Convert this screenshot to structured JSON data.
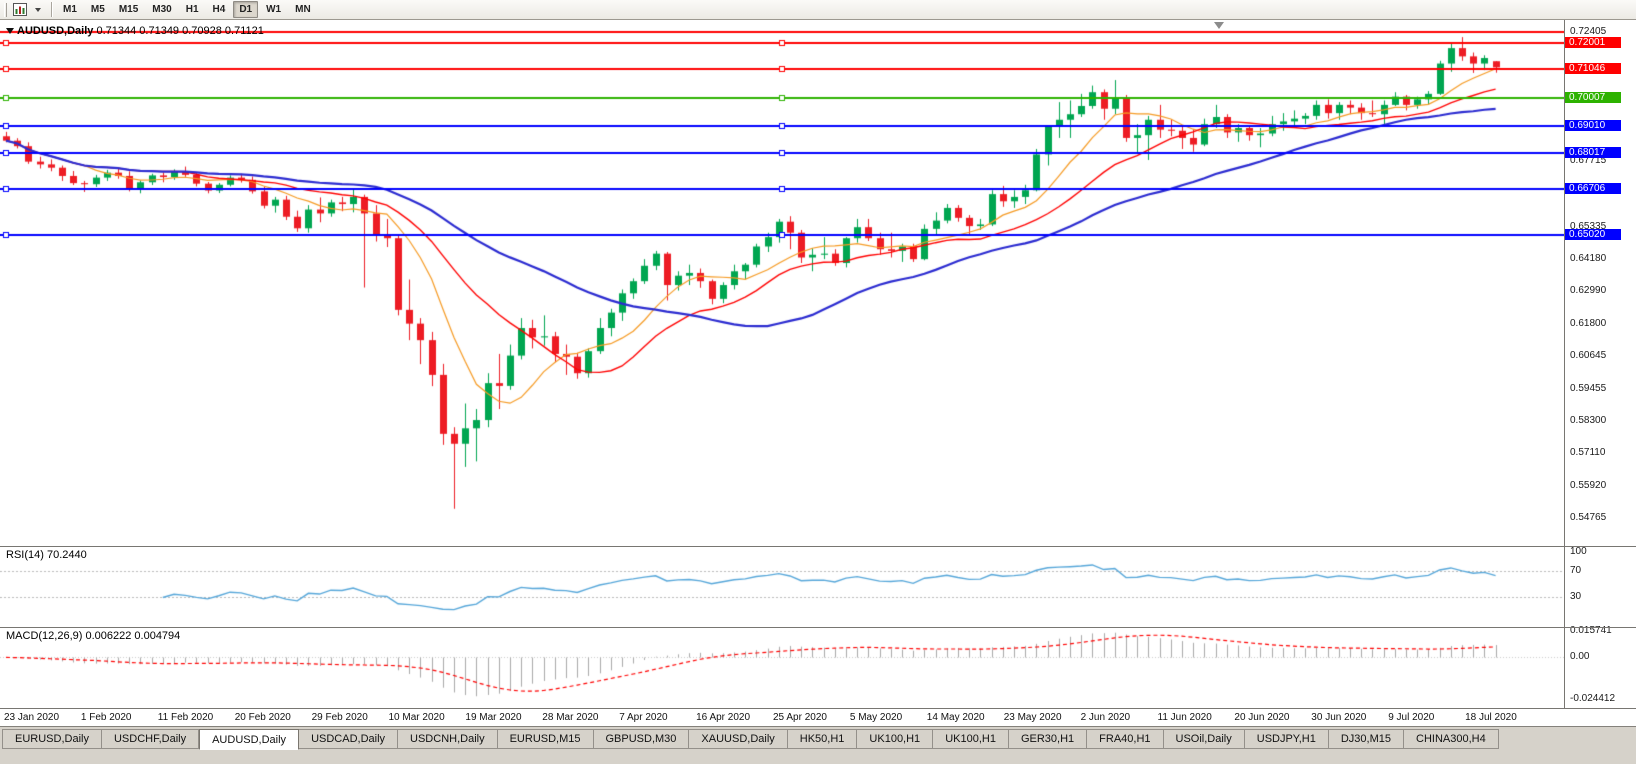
{
  "toolbar": {
    "icons": [
      {
        "name": "chart-window-icon"
      },
      {
        "name": "caret-down-icon"
      }
    ],
    "timeframes": [
      {
        "label": "M1",
        "active": false
      },
      {
        "label": "M5",
        "active": false
      },
      {
        "label": "M15",
        "active": false
      },
      {
        "label": "M30",
        "active": false
      },
      {
        "label": "H1",
        "active": false
      },
      {
        "label": "H4",
        "active": false
      },
      {
        "label": "D1",
        "active": true
      },
      {
        "label": "W1",
        "active": false
      },
      {
        "label": "MN",
        "active": false
      }
    ]
  },
  "chart": {
    "symbol": "AUDUSD,Daily",
    "ohlc_text": "0.71344 0.71349 0.70928 0.71121"
  },
  "rsi_panel": {
    "label": "RSI(14) 70.2440",
    "period": 14,
    "current_value": 70.244,
    "color": "#55a6d9",
    "level_lines": [
      70,
      30
    ],
    "ticks": [
      {
        "label": "100",
        "value": 100
      },
      {
        "label": "70",
        "value": 70
      },
      {
        "label": "30",
        "value": 30
      }
    ]
  },
  "macd_panel": {
    "label": "MACD(12,26,9) 0.006222 0.004794",
    "params": [
      12,
      26,
      9
    ],
    "macd_value": 0.006222,
    "signal_value": 0.004794,
    "histogram_color": "#a8a8a8",
    "signal_color": "#ff0000",
    "ticks": [
      {
        "label": "0.015741",
        "value": 0.015741
      },
      {
        "label": "0.00",
        "value": 0
      },
      {
        "label": "-0.024412",
        "value": -0.024412
      }
    ]
  },
  "price_axis": {
    "plain_ticks": [
      {
        "label": "0.72405",
        "value": 0.72405
      },
      {
        "label": "0.67715",
        "value": 0.67715
      },
      {
        "label": "0.65335",
        "value": 0.65335
      },
      {
        "label": "0.64180",
        "value": 0.6418
      },
      {
        "label": "0.62990",
        "value": 0.6299
      },
      {
        "label": "0.61800",
        "value": 0.618
      },
      {
        "label": "0.60645",
        "value": 0.60645
      },
      {
        "label": "0.59455",
        "value": 0.59455
      },
      {
        "label": "0.58300",
        "value": 0.583
      },
      {
        "label": "0.57110",
        "value": 0.5711
      },
      {
        "label": "0.55920",
        "value": 0.5592
      },
      {
        "label": "0.54765",
        "value": 0.54765
      }
    ]
  },
  "date_axis": {
    "labels": [
      "23 Jan 2020",
      "1 Feb 2020",
      "11 Feb 2020",
      "20 Feb 2020",
      "29 Feb 2020",
      "10 Mar 2020",
      "19 Mar 2020",
      "28 Mar 2020",
      "7 Apr 2020",
      "16 Apr 2020",
      "25 Apr 2020",
      "5 May 2020",
      "14 May 2020",
      "23 May 2020",
      "2 Jun 2020",
      "11 Jun 2020",
      "20 Jun 2020",
      "30 Jun 2020",
      "9 Jul 2020",
      "18 Jul 2020"
    ]
  },
  "tabs": [
    {
      "label": "EURUSD,Daily",
      "active": false
    },
    {
      "label": "USDCHF,Daily",
      "active": false
    },
    {
      "label": "AUDUSD,Daily",
      "active": true
    },
    {
      "label": "USDCAD,Daily",
      "active": false
    },
    {
      "label": "USDCNH,Daily",
      "active": false
    },
    {
      "label": "EURUSD,M15",
      "active": false
    },
    {
      "label": "GBPUSD,M30",
      "active": false
    },
    {
      "label": "XAUUSD,Daily",
      "active": false
    },
    {
      "label": "HK50,H1",
      "active": false
    },
    {
      "label": "UK100,H1",
      "active": false
    },
    {
      "label": "UK100,H1",
      "active": false
    },
    {
      "label": "GER30,H1",
      "active": false
    },
    {
      "label": "FRA40,H1",
      "active": false
    },
    {
      "label": "USOil,Daily",
      "active": false
    },
    {
      "label": "USDJPY,H1",
      "active": false
    },
    {
      "label": "DJ30,M15",
      "active": false
    },
    {
      "label": "CHINA300,H4",
      "active": false
    }
  ],
  "chart_data": {
    "type": "candlestick",
    "symbol": "AUDUSD",
    "timeframe": "Daily",
    "current_bar": {
      "open": 0.71344,
      "high": 0.71349,
      "low": 0.70928,
      "close": 0.71121
    },
    "price_axis": {
      "max": 0.72405,
      "min": 0.54765
    },
    "bull_color": "#00a651",
    "bear_color": "#ed1c24",
    "x_tick_labels": [
      "23 Jan 2020",
      "1 Feb 2020",
      "11 Feb 2020",
      "20 Feb 2020",
      "29 Feb 2020",
      "10 Mar 2020",
      "19 Mar 2020",
      "28 Mar 2020",
      "7 Apr 2020",
      "16 Apr 2020",
      "25 Apr 2020",
      "5 May 2020",
      "14 May 2020",
      "23 May 2020",
      "2 Jun 2020",
      "11 Jun 2020",
      "20 Jun 2020",
      "30 Jun 2020",
      "9 Jul 2020",
      "18 Jul 2020"
    ],
    "moving_averages": [
      {
        "period": 8,
        "color": "#f59a23",
        "width": 1.2
      },
      {
        "period": 17,
        "color": "#ff0000",
        "width": 1.4
      },
      {
        "period": 34,
        "color": "#2b2bd0",
        "width": 2.2
      }
    ],
    "hlines": [
      {
        "label": "0.72405",
        "price": 0.72405,
        "color": "#ff0000",
        "badge": false,
        "handles": false
      },
      {
        "label": "0.72001",
        "price": 0.72001,
        "color": "#ff0000",
        "badge": true,
        "handles": true
      },
      {
        "label": "0.71046",
        "price": 0.71046,
        "color": "#ff0000",
        "badge": true,
        "handles": true
      },
      {
        "label": "0.70007",
        "price": 0.70007,
        "color": "#2db200",
        "badge": true,
        "handles": true
      },
      {
        "label": "0.69010",
        "price": 0.6901,
        "color": "#0000ff",
        "badge": true,
        "handles": true
      },
      {
        "label": "0.68017",
        "price": 0.68017,
        "color": "#0000ff",
        "badge": true,
        "handles": true
      },
      {
        "label": "0.66706",
        "price": 0.66706,
        "color": "#0000ff",
        "badge": true,
        "handles": true
      },
      {
        "label": "0.65020",
        "price": 0.6502,
        "color": "#0000ff",
        "badge": true,
        "handles": true
      }
    ],
    "candles": [
      [
        0.6862,
        0.6878,
        0.684,
        0.6846
      ],
      [
        0.6846,
        0.6855,
        0.6818,
        0.6826
      ],
      [
        0.6826,
        0.684,
        0.6762,
        0.677
      ],
      [
        0.677,
        0.6788,
        0.6745,
        0.676
      ],
      [
        0.676,
        0.6778,
        0.6735,
        0.6748
      ],
      [
        0.6748,
        0.6756,
        0.67,
        0.6718
      ],
      [
        0.6718,
        0.6736,
        0.6685,
        0.6692
      ],
      [
        0.6692,
        0.67,
        0.666,
        0.6688
      ],
      [
        0.6688,
        0.6722,
        0.6678,
        0.6712
      ],
      [
        0.6712,
        0.674,
        0.67,
        0.673
      ],
      [
        0.673,
        0.6745,
        0.6708,
        0.6718
      ],
      [
        0.6718,
        0.6735,
        0.6662,
        0.6672
      ],
      [
        0.6672,
        0.6702,
        0.6655,
        0.6695
      ],
      [
        0.6695,
        0.6726,
        0.6685,
        0.672
      ],
      [
        0.672,
        0.673,
        0.6695,
        0.6714
      ],
      [
        0.6714,
        0.6742,
        0.6704,
        0.6736
      ],
      [
        0.6736,
        0.6752,
        0.6715,
        0.6722
      ],
      [
        0.6722,
        0.6728,
        0.668,
        0.669
      ],
      [
        0.669,
        0.6696,
        0.6655,
        0.6665
      ],
      [
        0.6665,
        0.6692,
        0.6656,
        0.6686
      ],
      [
        0.6686,
        0.672,
        0.668,
        0.6712
      ],
      [
        0.6712,
        0.6726,
        0.6694,
        0.6704
      ],
      [
        0.6704,
        0.6716,
        0.6654,
        0.6662
      ],
      [
        0.6662,
        0.668,
        0.66,
        0.661
      ],
      [
        0.661,
        0.6642,
        0.6585,
        0.6632
      ],
      [
        0.6632,
        0.6646,
        0.6558,
        0.657
      ],
      [
        0.657,
        0.6592,
        0.6515,
        0.6528
      ],
      [
        0.6528,
        0.6612,
        0.6512,
        0.6596
      ],
      [
        0.6596,
        0.664,
        0.655,
        0.6582
      ],
      [
        0.6582,
        0.6632,
        0.657,
        0.6622
      ],
      [
        0.6622,
        0.6642,
        0.659,
        0.6616
      ],
      [
        0.6616,
        0.6672,
        0.6586,
        0.6642
      ],
      [
        0.6642,
        0.665,
        0.6313,
        0.6582
      ],
      [
        0.6582,
        0.6612,
        0.648,
        0.6502
      ],
      [
        0.6502,
        0.6562,
        0.646,
        0.6492
      ],
      [
        0.6492,
        0.6502,
        0.6212,
        0.6232
      ],
      [
        0.6232,
        0.6342,
        0.6122,
        0.6182
      ],
      [
        0.6182,
        0.6202,
        0.6035,
        0.6122
      ],
      [
        0.6122,
        0.6152,
        0.5955,
        0.5996
      ],
      [
        0.5996,
        0.6036,
        0.5742,
        0.5782
      ],
      [
        0.5782,
        0.5806,
        0.551,
        0.5746
      ],
      [
        0.5746,
        0.5892,
        0.5662,
        0.5802
      ],
      [
        0.5802,
        0.5872,
        0.5682,
        0.5832
      ],
      [
        0.5832,
        0.6002,
        0.5806,
        0.5966
      ],
      [
        0.5966,
        0.6072,
        0.5872,
        0.5956
      ],
      [
        0.5956,
        0.6106,
        0.5942,
        0.6066
      ],
      [
        0.6066,
        0.6202,
        0.6052,
        0.6166
      ],
      [
        0.6166,
        0.6196,
        0.6092,
        0.6132
      ],
      [
        0.6132,
        0.6212,
        0.6102,
        0.6136
      ],
      [
        0.6136,
        0.6152,
        0.6042,
        0.6072
      ],
      [
        0.6072,
        0.6106,
        0.5996,
        0.6062
      ],
      [
        0.6062,
        0.6076,
        0.5982,
        0.6002
      ],
      [
        0.6002,
        0.6092,
        0.5986,
        0.6082
      ],
      [
        0.6082,
        0.6202,
        0.6072,
        0.6166
      ],
      [
        0.6166,
        0.6236,
        0.6136,
        0.6222
      ],
      [
        0.6222,
        0.6306,
        0.6192,
        0.6292
      ],
      [
        0.6292,
        0.6346,
        0.6272,
        0.6336
      ],
      [
        0.6336,
        0.6416,
        0.6326,
        0.6392
      ],
      [
        0.6392,
        0.6446,
        0.6376,
        0.6436
      ],
      [
        0.6436,
        0.6442,
        0.6266,
        0.6322
      ],
      [
        0.6322,
        0.6372,
        0.6302,
        0.6356
      ],
      [
        0.6356,
        0.6396,
        0.6322,
        0.6366
      ],
      [
        0.6366,
        0.6382,
        0.6312,
        0.6336
      ],
      [
        0.6336,
        0.6342,
        0.6252,
        0.6272
      ],
      [
        0.6272,
        0.6332,
        0.6256,
        0.6322
      ],
      [
        0.6322,
        0.6396,
        0.6306,
        0.6372
      ],
      [
        0.6372,
        0.6402,
        0.6342,
        0.6396
      ],
      [
        0.6396,
        0.6472,
        0.6386,
        0.6462
      ],
      [
        0.6462,
        0.6512,
        0.6442,
        0.6496
      ],
      [
        0.6496,
        0.6562,
        0.6476,
        0.6552
      ],
      [
        0.6552,
        0.6572,
        0.6452,
        0.6512
      ],
      [
        0.6512,
        0.6522,
        0.6402,
        0.6422
      ],
      [
        0.6422,
        0.6456,
        0.6372,
        0.6432
      ],
      [
        0.6432,
        0.6496,
        0.6416,
        0.6436
      ],
      [
        0.6436,
        0.6452,
        0.6392,
        0.6402
      ],
      [
        0.6402,
        0.6496,
        0.6386,
        0.6492
      ],
      [
        0.6492,
        0.6562,
        0.6476,
        0.6532
      ],
      [
        0.6532,
        0.6562,
        0.6482,
        0.6492
      ],
      [
        0.6492,
        0.6512,
        0.6432,
        0.6452
      ],
      [
        0.6452,
        0.6512,
        0.6422,
        0.6446
      ],
      [
        0.6446,
        0.6472,
        0.6406,
        0.6462
      ],
      [
        0.6462,
        0.6472,
        0.6406,
        0.6416
      ],
      [
        0.6416,
        0.6542,
        0.6412,
        0.6526
      ],
      [
        0.6526,
        0.6586,
        0.6506,
        0.6556
      ],
      [
        0.6556,
        0.6616,
        0.6546,
        0.6602
      ],
      [
        0.6602,
        0.6612,
        0.6552,
        0.6566
      ],
      [
        0.6566,
        0.6576,
        0.6506,
        0.6536
      ],
      [
        0.6536,
        0.6562,
        0.6522,
        0.6542
      ],
      [
        0.6542,
        0.6666,
        0.6536,
        0.6652
      ],
      [
        0.6652,
        0.6682,
        0.6606,
        0.6626
      ],
      [
        0.6626,
        0.6666,
        0.6602,
        0.6642
      ],
      [
        0.6642,
        0.6686,
        0.6616,
        0.6666
      ],
      [
        0.6666,
        0.6816,
        0.6662,
        0.6796
      ],
      [
        0.6796,
        0.6902,
        0.6756,
        0.6896
      ],
      [
        0.6896,
        0.6986,
        0.6856,
        0.6922
      ],
      [
        0.6922,
        0.6992,
        0.6856,
        0.6942
      ],
      [
        0.6942,
        0.7016,
        0.6932,
        0.6972
      ],
      [
        0.6972,
        0.7046,
        0.6962,
        0.7022
      ],
      [
        0.7022,
        0.7032,
        0.6922,
        0.6962
      ],
      [
        0.6962,
        0.7066,
        0.6942,
        0.7002
      ],
      [
        0.7002,
        0.7012,
        0.6842,
        0.6856
      ],
      [
        0.6856,
        0.6906,
        0.6802,
        0.6866
      ],
      [
        0.6866,
        0.6936,
        0.6776,
        0.6922
      ],
      [
        0.6922,
        0.6976,
        0.6856,
        0.6886
      ],
      [
        0.6886,
        0.6922,
        0.6862,
        0.6882
      ],
      [
        0.6882,
        0.6896,
        0.6816,
        0.6856
      ],
      [
        0.6856,
        0.6886,
        0.6806,
        0.6832
      ],
      [
        0.6832,
        0.6926,
        0.6826,
        0.6906
      ],
      [
        0.6906,
        0.6976,
        0.6892,
        0.6932
      ],
      [
        0.6932,
        0.6942,
        0.6856,
        0.6876
      ],
      [
        0.6876,
        0.6906,
        0.6842,
        0.6892
      ],
      [
        0.6892,
        0.6902,
        0.6846,
        0.6866
      ],
      [
        0.6866,
        0.6892,
        0.6822,
        0.6872
      ],
      [
        0.6872,
        0.6936,
        0.6862,
        0.6906
      ],
      [
        0.6906,
        0.6946,
        0.6882,
        0.6916
      ],
      [
        0.6916,
        0.6956,
        0.6902,
        0.6926
      ],
      [
        0.6926,
        0.6946,
        0.6906,
        0.6936
      ],
      [
        0.6936,
        0.6992,
        0.6922,
        0.6976
      ],
      [
        0.6976,
        0.6996,
        0.6926,
        0.6946
      ],
      [
        0.6946,
        0.6986,
        0.6922,
        0.6976
      ],
      [
        0.6976,
        0.6992,
        0.6942,
        0.6966
      ],
      [
        0.6966,
        0.6982,
        0.6922,
        0.6946
      ],
      [
        0.6946,
        0.6992,
        0.6932,
        0.6942
      ],
      [
        0.6942,
        0.6992,
        0.6906,
        0.6976
      ],
      [
        0.6976,
        0.7022,
        0.6972,
        0.7006
      ],
      [
        0.7006,
        0.7012,
        0.6956,
        0.6976
      ],
      [
        0.6976,
        0.7006,
        0.6962,
        0.6996
      ],
      [
        0.6996,
        0.7026,
        0.6976,
        0.7016
      ],
      [
        0.7016,
        0.7136,
        0.7012,
        0.7126
      ],
      [
        0.7126,
        0.7202,
        0.7096,
        0.7182
      ],
      [
        0.7182,
        0.7222,
        0.7136,
        0.7152
      ],
      [
        0.7152,
        0.7166,
        0.7092,
        0.7126
      ],
      [
        0.7126,
        0.7156,
        0.7102,
        0.7146
      ],
      [
        0.71344,
        0.71349,
        0.70928,
        0.71121
      ]
    ]
  }
}
